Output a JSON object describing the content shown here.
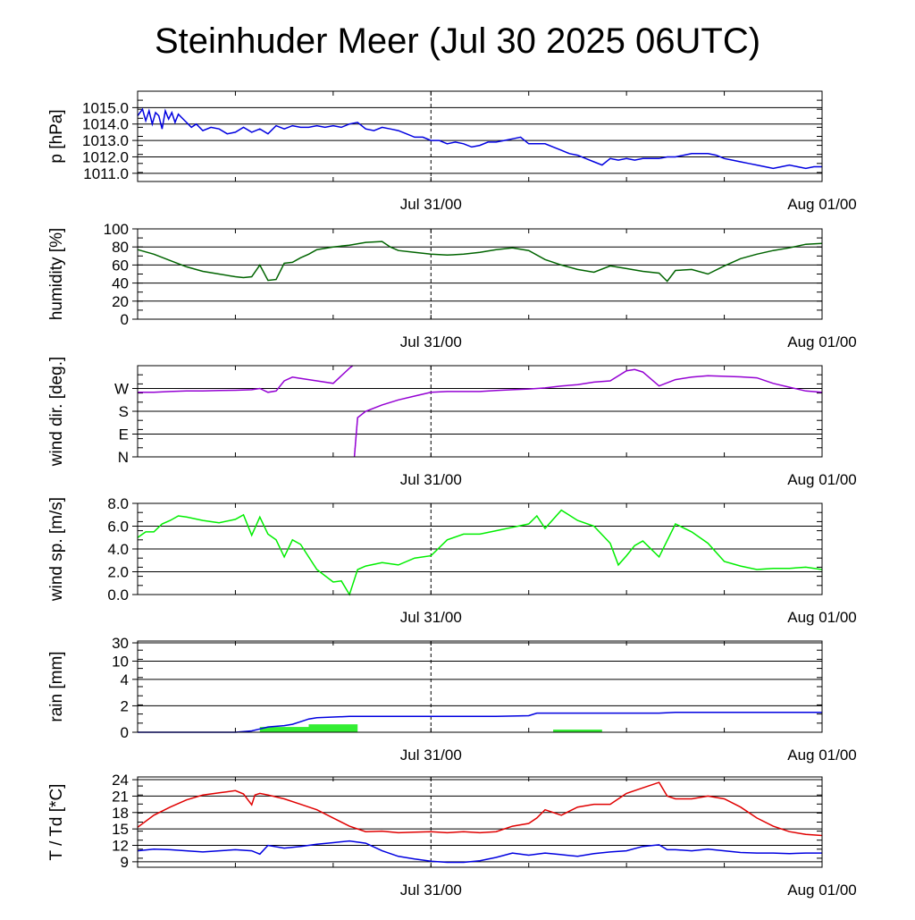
{
  "title": "Steinhuder Meer (Jul 30 2025 06UTC)",
  "colors": {
    "pressure": "#0000e0",
    "humidity": "#006400",
    "wind_dir": "#9400d3",
    "wind_speed": "#00ee00",
    "rain_bar": "#33ee33",
    "rain_line": "#0000e0",
    "temperature": "#e00000",
    "dewpoint": "#0000e0"
  },
  "chart_data": [
    {
      "type": "line",
      "ylabel": "p [hPa]",
      "ylim": [
        1010.5,
        1016.0
      ],
      "yticks": [
        "1015.0",
        "1014.0",
        "1013.0",
        "1012.0",
        "1011.0"
      ],
      "ytick_values": [
        1015,
        1014,
        1013,
        1012,
        1011
      ],
      "x_range_hours": [
        0,
        42
      ],
      "xtick_labels": [
        "Jul 31/00",
        "Aug 01/00"
      ],
      "xtick_hours": [
        18,
        42
      ],
      "series": [
        {
          "color_key": "pressure",
          "x": [
            0,
            0.3,
            0.5,
            0.7,
            0.9,
            1.1,
            1.3,
            1.5,
            1.7,
            1.9,
            2.1,
            2.3,
            2.5,
            2.7,
            3,
            3.3,
            3.6,
            4,
            4.5,
            5,
            5.5,
            6,
            6.5,
            7,
            7.5,
            8,
            8.5,
            9,
            9.5,
            10,
            10.5,
            11,
            11.5,
            12,
            12.5,
            13,
            13.5,
            14,
            14.5,
            15,
            15.5,
            16,
            16.5,
            17,
            17.5,
            18,
            18.5,
            19,
            19.5,
            20,
            20.5,
            21,
            21.5,
            22,
            22.5,
            23,
            23.5,
            24,
            24.5,
            25,
            25.5,
            26,
            26.5,
            27,
            27.5,
            28,
            28.5,
            29,
            29.5,
            30,
            30.5,
            31,
            31.5,
            32,
            32.5,
            33,
            33.5,
            34,
            34.5,
            35,
            35.5,
            36,
            36.5,
            37,
            37.5,
            38,
            38.5,
            39,
            39.5,
            40,
            40.5,
            41,
            41.5,
            42
          ],
          "y": [
            1014.5,
            1014.9,
            1014.2,
            1014.8,
            1014.0,
            1014.7,
            1014.5,
            1013.7,
            1014.8,
            1014.3,
            1014.7,
            1014.1,
            1014.6,
            1014.4,
            1014.1,
            1013.8,
            1014.0,
            1013.6,
            1013.8,
            1013.7,
            1013.4,
            1013.5,
            1013.8,
            1013.5,
            1013.7,
            1013.4,
            1013.9,
            1013.7,
            1013.9,
            1013.8,
            1013.8,
            1013.9,
            1013.8,
            1013.9,
            1013.8,
            1014.0,
            1014.1,
            1013.7,
            1013.6,
            1013.8,
            1013.7,
            1013.6,
            1013.4,
            1013.2,
            1013.2,
            1013.0,
            1013.0,
            1012.8,
            1012.9,
            1012.8,
            1012.6,
            1012.7,
            1012.9,
            1012.9,
            1013.0,
            1013.1,
            1013.2,
            1012.8,
            1012.8,
            1012.8,
            1012.6,
            1012.4,
            1012.2,
            1012.1,
            1011.9,
            1011.7,
            1011.5,
            1011.9,
            1011.8,
            1011.9,
            1011.8,
            1011.9,
            1011.9,
            1011.9,
            1012.0,
            1012.0,
            1012.1,
            1012.2,
            1012.2,
            1012.2,
            1012.1,
            1011.9,
            1011.8,
            1011.7,
            1011.6,
            1011.5,
            1011.4,
            1011.3,
            1011.4,
            1011.5,
            1011.4,
            1011.3,
            1011.4,
            1011.4
          ]
        }
      ]
    },
    {
      "type": "line",
      "ylabel": "humidity [%]",
      "ylim": [
        0,
        100
      ],
      "yticks": [
        "100",
        "80",
        "60",
        "40",
        "20",
        "0"
      ],
      "ytick_values": [
        100,
        80,
        60,
        40,
        20,
        0
      ],
      "x_range_hours": [
        0,
        42
      ],
      "xtick_labels": [
        "Jul 31/00",
        "Aug 01/00"
      ],
      "xtick_hours": [
        18,
        42
      ],
      "series": [
        {
          "color_key": "humidity",
          "x": [
            0,
            1,
            2,
            3,
            4,
            5,
            6,
            6.5,
            7,
            7.5,
            8,
            8.5,
            9,
            9.5,
            10,
            10.5,
            11,
            12,
            13,
            14,
            15,
            15.5,
            16,
            17,
            18,
            19,
            20,
            21,
            22,
            23,
            24,
            25,
            26,
            27,
            28,
            29,
            30,
            31,
            32,
            32.5,
            33,
            34,
            35,
            36,
            37,
            38,
            39,
            40,
            41,
            42
          ],
          "x_note": "",
          "y": [
            77,
            72,
            65,
            58,
            53,
            50,
            47,
            46,
            47,
            60,
            43,
            44,
            62,
            63,
            68,
            72,
            77,
            80,
            82,
            85,
            86,
            80,
            76,
            74,
            72,
            71,
            72,
            74,
            77,
            79,
            76,
            66,
            60,
            55,
            52,
            59,
            56,
            53,
            51,
            42,
            54,
            55,
            50,
            59,
            67,
            72,
            76,
            79,
            83,
            84
          ]
        }
      ]
    },
    {
      "type": "scatter",
      "ylabel": "wind dir. [deg.]",
      "ylim": [
        0,
        360
      ],
      "yticks": [
        "W",
        "S",
        "E",
        "N"
      ],
      "ytick_values": [
        270,
        180,
        90,
        0
      ],
      "x_range_hours": [
        0,
        42
      ],
      "xtick_labels": [
        "Jul 31/00",
        "Aug 01/00"
      ],
      "xtick_hours": [
        18,
        42
      ],
      "series": [
        {
          "color_key": "wind_dir",
          "x": [
            0,
            1,
            2,
            3,
            4,
            5,
            6,
            7,
            7.5,
            8,
            8.5,
            9,
            9.5,
            10,
            11,
            12,
            13,
            13.2,
            13.3,
            13.5,
            14,
            15,
            16,
            17,
            18,
            19,
            20,
            21,
            22,
            23,
            24,
            25,
            26,
            27,
            28,
            29,
            30,
            30.5,
            31,
            32,
            33,
            34,
            35,
            36,
            37,
            38,
            39,
            40,
            41,
            42
          ],
          "y": [
            255,
            255,
            258,
            260,
            260,
            262,
            263,
            265,
            270,
            255,
            260,
            300,
            315,
            310,
            300,
            290,
            350,
            360,
            0,
            155,
            180,
            205,
            225,
            240,
            255,
            258,
            258,
            258,
            262,
            265,
            268,
            272,
            280,
            285,
            295,
            300,
            340,
            345,
            335,
            280,
            305,
            315,
            320,
            318,
            316,
            312,
            290,
            275,
            260,
            255
          ]
        }
      ]
    },
    {
      "type": "line",
      "ylabel": "wind sp. [m/s]",
      "ylim": [
        0,
        8
      ],
      "yticks": [
        "8.0",
        "6.0",
        "4.0",
        "2.0",
        "0.0"
      ],
      "ytick_values": [
        8,
        6,
        4,
        2,
        0
      ],
      "x_range_hours": [
        0,
        42
      ],
      "xtick_labels": [
        "Jul 31/00",
        "Aug 01/00"
      ],
      "xtick_hours": [
        18,
        42
      ],
      "series": [
        {
          "color_key": "wind_speed",
          "x": [
            0,
            0.5,
            1,
            1.5,
            2,
            2.5,
            3,
            4,
            5,
            6,
            6.5,
            7,
            7.5,
            8,
            8.5,
            9,
            9.5,
            10,
            11,
            12,
            12.5,
            13,
            13.5,
            14,
            15,
            16,
            17,
            18,
            19,
            20,
            21,
            22,
            23,
            24,
            24.5,
            25,
            26,
            27,
            28,
            29,
            29.5,
            30,
            30.5,
            31,
            32,
            33,
            34,
            35,
            36,
            37,
            38,
            39,
            40,
            41,
            42
          ],
          "y": [
            5.0,
            5.5,
            5.5,
            6.2,
            6.5,
            6.9,
            6.8,
            6.5,
            6.3,
            6.6,
            7.0,
            5.2,
            6.8,
            5.3,
            4.8,
            3.3,
            4.8,
            4.4,
            2.2,
            1.1,
            1.2,
            0.0,
            2.2,
            2.5,
            2.8,
            2.6,
            3.2,
            3.4,
            4.8,
            5.3,
            5.3,
            5.6,
            5.9,
            6.2,
            6.9,
            5.8,
            7.4,
            6.5,
            6.0,
            4.5,
            2.6,
            3.4,
            4.3,
            4.7,
            3.3,
            6.2,
            5.5,
            4.5,
            2.9,
            2.5,
            2.2,
            2.3,
            2.3,
            2.4,
            2.2
          ]
        }
      ]
    },
    {
      "type": "bar+line",
      "ylabel": "rain [mm]",
      "yticks": [
        "30",
        "10",
        "4",
        "2",
        "0"
      ],
      "ytick_values": [
        30,
        10,
        4,
        2,
        0
      ],
      "x_range_hours": [
        0,
        42
      ],
      "xtick_labels": [
        "Jul 31/00",
        "Aug 01/00"
      ],
      "xtick_hours": [
        18,
        42
      ],
      "bars": [
        {
          "x_start": 7.5,
          "x_end": 10.5,
          "value": 0.4
        },
        {
          "x_start": 10.5,
          "x_end": 13.5,
          "value": 0.6
        },
        {
          "x_start": 25.5,
          "x_end": 28.5,
          "value": 0.2
        }
      ],
      "series": [
        {
          "name": "",
          "color_key": "rain_line",
          "x": [
            0,
            5,
            6,
            7,
            7.5,
            8,
            9,
            9.5,
            10,
            10.5,
            11,
            12,
            13,
            14,
            16,
            18,
            20,
            22,
            24,
            24.5,
            25,
            30,
            32,
            33,
            34,
            36,
            38,
            40,
            42
          ],
          "y": [
            0,
            0,
            0,
            0.1,
            0.25,
            0.4,
            0.5,
            0.6,
            0.8,
            1.0,
            1.1,
            1.15,
            1.2,
            1.2,
            1.2,
            1.2,
            1.2,
            1.2,
            1.25,
            1.45,
            1.45,
            1.45,
            1.45,
            1.5,
            1.5,
            1.5,
            1.5,
            1.5,
            1.5
          ]
        }
      ]
    },
    {
      "type": "line",
      "ylabel": "T / Td [*C]",
      "ylim": [
        8,
        24.5
      ],
      "yticks": [
        "24",
        "21",
        "18",
        "15",
        "12",
        "9"
      ],
      "ytick_values": [
        24,
        21,
        18,
        15,
        12,
        9
      ],
      "x_range_hours": [
        0,
        42
      ],
      "xtick_labels": [
        "Jul 31/00",
        "Aug 01/00"
      ],
      "xtick_hours": [
        18,
        42
      ],
      "series": [
        {
          "color_key": "temperature",
          "x": [
            0,
            1,
            2,
            3,
            4,
            5,
            6,
            6.5,
            7,
            7.2,
            7.5,
            8,
            9,
            10,
            11,
            12,
            13,
            14,
            15,
            16,
            17,
            18,
            19,
            20,
            21,
            22,
            23,
            24,
            24.5,
            25,
            26,
            27,
            28,
            29,
            30,
            31,
            32,
            32.5,
            33,
            33.5,
            34,
            35,
            36,
            37,
            38,
            39,
            40,
            41,
            42
          ],
          "y": [
            15.3,
            17.5,
            19.0,
            20.3,
            21.2,
            21.6,
            22.0,
            21.4,
            19.4,
            21.2,
            21.5,
            21.2,
            20.5,
            19.5,
            18.5,
            17.0,
            15.5,
            14.5,
            14.6,
            14.3,
            14.4,
            14.5,
            14.3,
            14.5,
            14.3,
            14.5,
            15.5,
            16.0,
            17.0,
            18.5,
            17.5,
            19.0,
            19.5,
            19.5,
            21.5,
            22.5,
            23.5,
            21.0,
            20.5,
            20.5,
            20.5,
            21.0,
            20.5,
            19.0,
            17.0,
            15.5,
            14.5,
            14.0,
            13.8
          ]
        },
        {
          "color_key": "dewpoint",
          "x": [
            0,
            1,
            2,
            3,
            4,
            5,
            6,
            7,
            7.5,
            8,
            9,
            10,
            11,
            12,
            13,
            14,
            15,
            16,
            17,
            18,
            19,
            20,
            21,
            22,
            23,
            24,
            25,
            26,
            27,
            28,
            29,
            30,
            31,
            32,
            32.5,
            33,
            34,
            35,
            36,
            37,
            38,
            39,
            40,
            41,
            42
          ],
          "y": [
            11.0,
            11.3,
            11.2,
            11.0,
            10.8,
            11.0,
            11.2,
            11.0,
            10.4,
            12.0,
            11.5,
            11.8,
            12.2,
            12.5,
            12.8,
            12.4,
            11.0,
            10.0,
            9.5,
            9.1,
            8.9,
            8.9,
            9.2,
            9.8,
            10.6,
            10.2,
            10.6,
            10.3,
            10.0,
            10.5,
            10.8,
            11.0,
            11.8,
            12.1,
            11.2,
            11.2,
            11.0,
            11.3,
            11.0,
            10.7,
            10.6,
            10.6,
            10.5,
            10.6,
            10.6
          ]
        }
      ]
    }
  ]
}
